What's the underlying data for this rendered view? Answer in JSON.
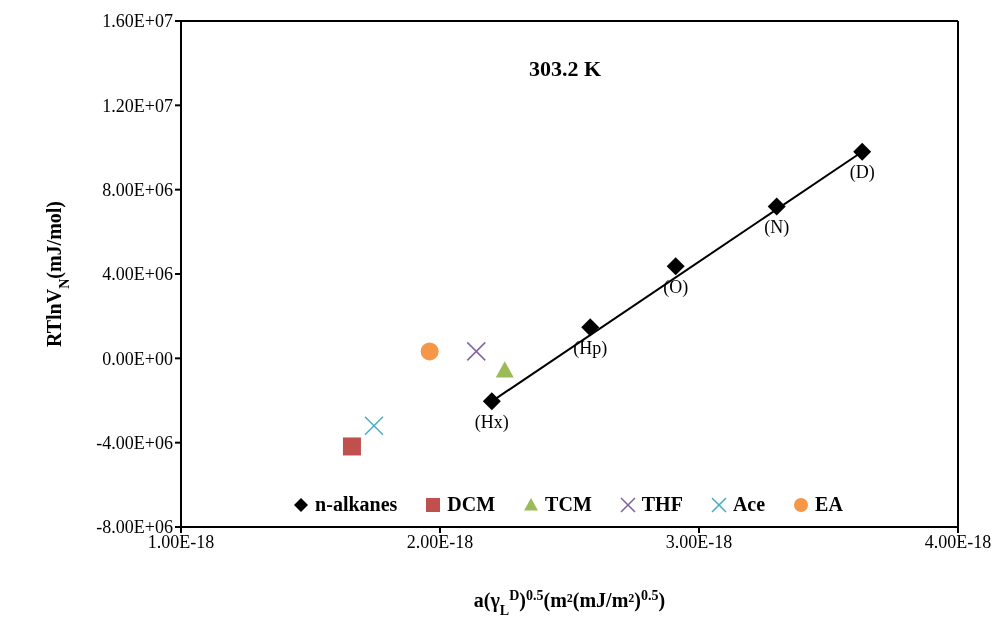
{
  "chart_data": {
    "type": "scatter",
    "title": "303.2 K",
    "xlabel": "a(γ$_{L}$$^{D}$)$^{0.5}$(m²(mJ/m²)$^{0.5}$)",
    "ylabel": "RTlnV$_{N}$(mJ/mol)",
    "xlim": [
      1e-18,
      4e-18
    ],
    "xticks": [
      {
        "value": 1e-18,
        "label": "1.00E-18"
      },
      {
        "value": 2e-18,
        "label": "2.00E-18"
      },
      {
        "value": 3e-18,
        "label": "3.00E-18"
      },
      {
        "value": 4e-18,
        "label": "4.00E-18"
      }
    ],
    "ylim": [
      -8000000,
      16000000
    ],
    "yticks": [
      {
        "value": -8000000,
        "label": "-8.00E+06"
      },
      {
        "value": -4000000,
        "label": "-4.00E+06"
      },
      {
        "value": 0,
        "label": "0.00E+00"
      },
      {
        "value": 4000000,
        "label": "4.00E+06"
      },
      {
        "value": 8000000,
        "label": "8.00E+06"
      },
      {
        "value": 12000000,
        "label": "1.20E+07"
      },
      {
        "value": 16000000,
        "label": "1.60E+07"
      }
    ],
    "legend": "bottom",
    "grid": false,
    "series": [
      {
        "name": "n-alkanes",
        "color": "#000000",
        "marker": "diamond",
        "x": [
          2.2e-18,
          2.58e-18,
          2.91e-18,
          3.3e-18,
          3.63e-18
        ],
        "values": [
          -2040000,
          1470000,
          4370000,
          7200000,
          9800000
        ]
      },
      {
        "name": "DCM",
        "color": "#c0504d",
        "marker": "square",
        "x": [
          1.66e-18
        ],
        "values": [
          -4180000
        ]
      },
      {
        "name": "TCM",
        "color": "#9bbb59",
        "marker": "triangle",
        "x": [
          2.25e-18
        ],
        "values": [
          -570000
        ]
      },
      {
        "name": "THF",
        "color": "#8064a2",
        "marker": "cross",
        "x": [
          2.14e-18
        ],
        "values": [
          330000
        ]
      },
      {
        "name": "Ace",
        "color": "#4bacc6",
        "marker": "cross",
        "x": [
          1.745e-18
        ],
        "values": [
          -3200000
        ]
      },
      {
        "name": "EA",
        "color": "#f79646",
        "marker": "circle",
        "x": [
          1.96e-18
        ],
        "values": [
          330000
        ]
      },
      {
        "type": "line",
        "color": "#000000",
        "marker": "none",
        "x": [
          2.2e-18,
          3.63e-18
        ],
        "values": [
          -2040000,
          9800000
        ]
      }
    ],
    "annotations": [
      {
        "text": "(Hx)",
        "x": 2.2e-18,
        "y": -2040000
      },
      {
        "text": "(Hp)",
        "x": 2.58e-18,
        "y": 1470000
      },
      {
        "text": "(O)",
        "x": 2.91e-18,
        "y": 4370000
      },
      {
        "text": "(N)",
        "x": 3.3e-18,
        "y": 7200000
      },
      {
        "text": "(D)",
        "x": 3.63e-18,
        "y": 9800000
      }
    ]
  }
}
